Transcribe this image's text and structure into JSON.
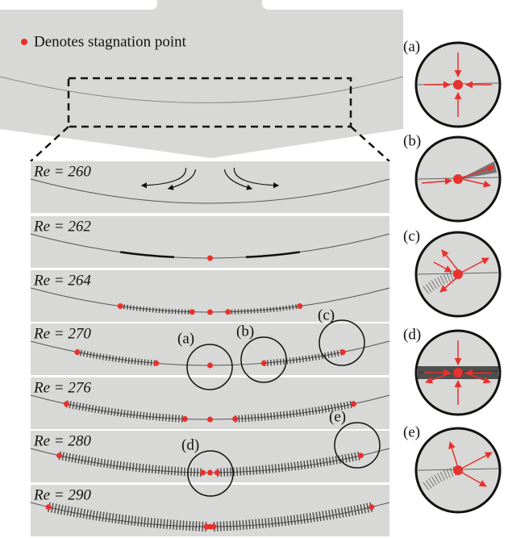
{
  "legend": "Denotes stagnation point",
  "panels": [
    {
      "label": "Re = 260"
    },
    {
      "label": "Re = 262"
    },
    {
      "label": "Re = 264"
    },
    {
      "label": "Re = 270"
    },
    {
      "label": "Re = 276"
    },
    {
      "label": "Re = 280"
    },
    {
      "label": "Re = 290"
    }
  ],
  "zoom_labels": [
    "(a)",
    "(b)",
    "(c)",
    "(d)",
    "(e)"
  ],
  "insets": [
    {
      "label": "(a)"
    },
    {
      "label": "(b)"
    },
    {
      "label": "(c)"
    },
    {
      "label": "(d)"
    },
    {
      "label": "(e)"
    }
  ]
}
